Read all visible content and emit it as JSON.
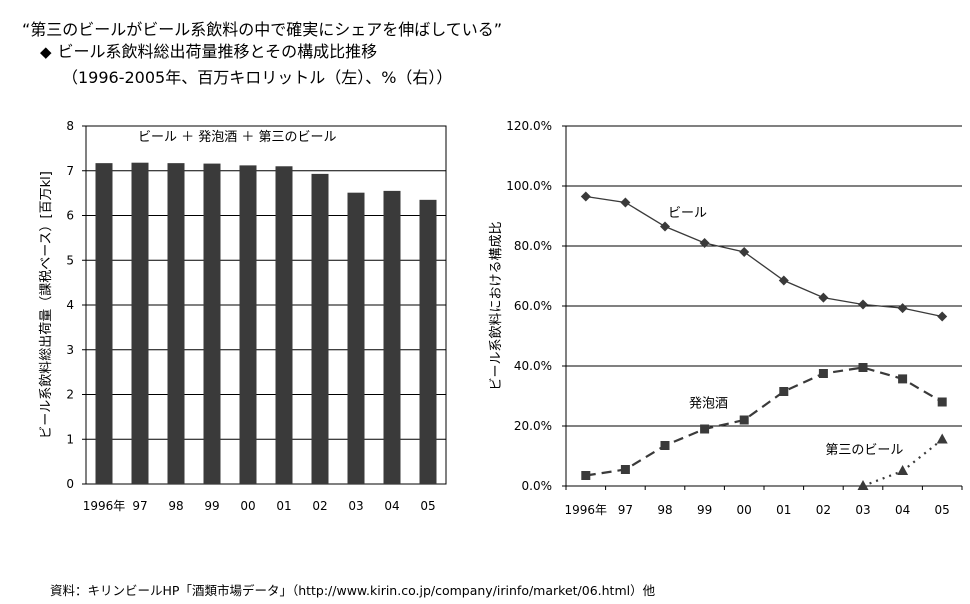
{
  "header": {
    "title": "“第三のビールがビール系飲料の中で確実にシェアを伸ばしている”",
    "subtitle_marker": "◆",
    "subtitle": "ビール系飲料総出荷量推移とその構成比推移",
    "note": "（1996-2005年、百万キロリットル（左）、%（右））"
  },
  "source": "資料：キリンビールHP「酒類市場データ」（http://www.kirin.co.jp/company/irinfo/market/06.html）他",
  "chart_data": [
    {
      "type": "bar",
      "categories": [
        "1996年",
        "97",
        "98",
        "99",
        "00",
        "01",
        "02",
        "03",
        "04",
        "05"
      ],
      "values": [
        7.17,
        7.18,
        7.17,
        7.16,
        7.12,
        7.1,
        6.93,
        6.51,
        6.55,
        6.35
      ],
      "ylim": [
        0,
        8
      ],
      "yticks": [
        "0",
        "1",
        "2",
        "3",
        "4",
        "5",
        "6",
        "7",
        "8"
      ],
      "ylabel": "ビール系飲料総出荷量（課税ベース）[百万kl]",
      "annotation": "ビール ＋ 発泡酒 ＋ 第三のビール",
      "grid": true,
      "bar_color": "#3a3a3a"
    },
    {
      "type": "line",
      "categories": [
        "1996年",
        "97",
        "98",
        "99",
        "00",
        "01",
        "02",
        "03",
        "04",
        "05"
      ],
      "ylim": [
        0,
        120
      ],
      "yticks": [
        "0.0%",
        "20.0%",
        "40.0%",
        "60.0%",
        "80.0%",
        "100.0%",
        "120.0%"
      ],
      "ylabel": "ビール系飲料における構成比",
      "grid": true,
      "series": [
        {
          "name": "ビール",
          "marker": "diamond",
          "style": "solid",
          "values": [
            96.5,
            94.5,
            86.5,
            81,
            78,
            68.5,
            62.8,
            60.5,
            59.3,
            56.5
          ]
        },
        {
          "name": "発泡酒",
          "marker": "square",
          "style": "dashed",
          "values": [
            3.5,
            5.5,
            13.5,
            19,
            22,
            31.5,
            37.5,
            39.5,
            35.7,
            28
          ]
        },
        {
          "name": "第三のビール",
          "marker": "triangle",
          "style": "dotted",
          "values": [
            null,
            null,
            null,
            null,
            null,
            null,
            null,
            0,
            5,
            15.5
          ]
        }
      ]
    }
  ]
}
